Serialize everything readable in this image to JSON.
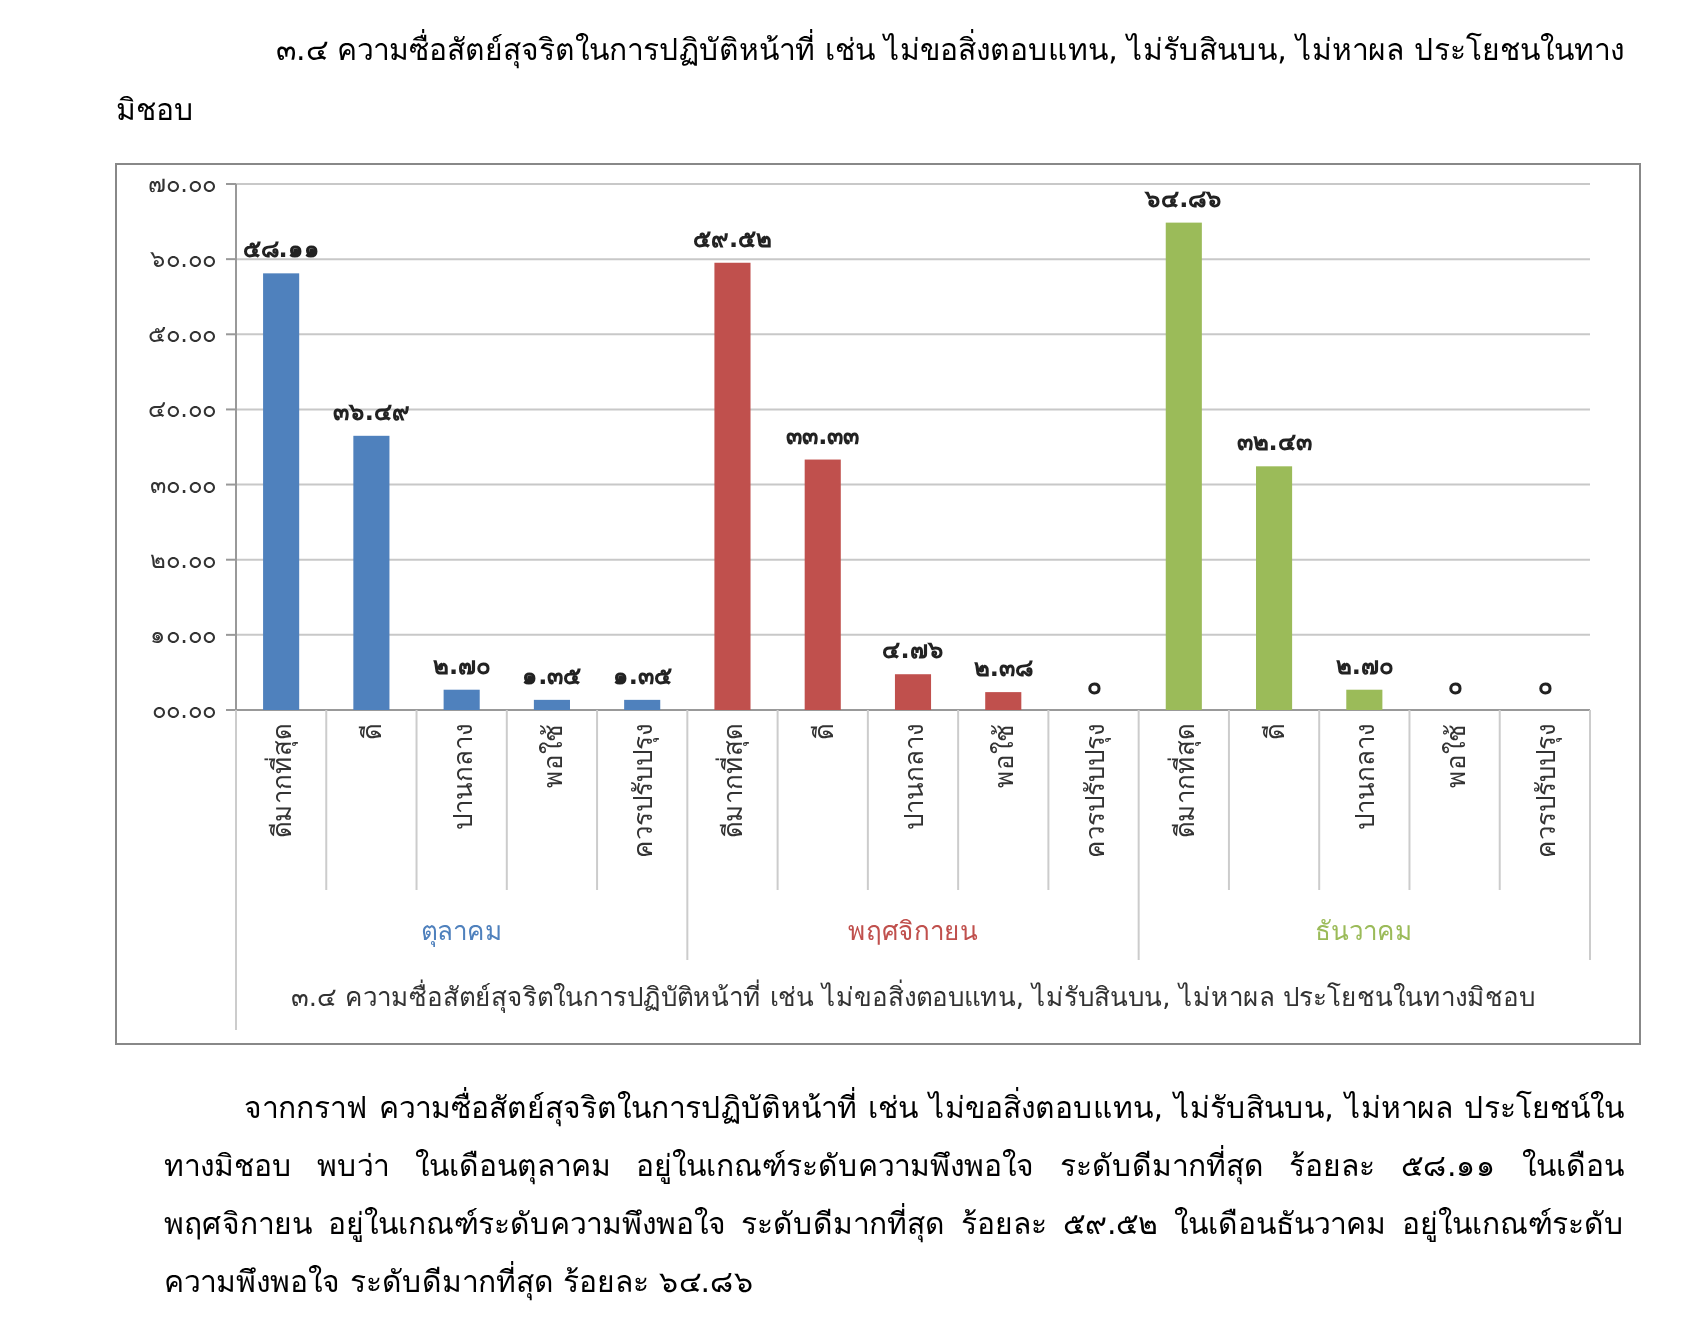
{
  "chart_data": {
    "type": "bar",
    "title": "๓.๔ ความซื่อสัตย์สุจริตในการปฏิบัติหน้าที่ เช่น ไม่ขอสิ่งตอบแทน, ไม่รับสินบน, ไม่หาผล ประโยชนในทางมิชอบ",
    "xlabel": "๓.๔ ความซื่อสัตย์สุจริตในการปฏิบัติหน้าที่ เช่น ไม่ขอสิ่งตอบแทน, ไม่รับสินบน, ไม่หาผล ประโยชนในทางมิชอบ",
    "categories": [
      "ดีมากที่สุด",
      "ดี",
      "ปานกลาง",
      "พอใช้",
      "ควรปรับปรุง",
      "ดีมากที่สุด",
      "ดี",
      "ปานกลาง",
      "พอใช้",
      "ควรปรับปรุง",
      "ดีมากที่สุด",
      "ดี",
      "ปานกลาง",
      "พอใช้",
      "ควรปรับปรุง"
    ],
    "series": [
      {
        "name": "ตุลาคม",
        "color": "#4f81bd",
        "values": [
          58.11,
          36.49,
          2.7,
          1.35,
          1.35,
          null,
          null,
          null,
          null,
          null,
          null,
          null,
          null,
          null,
          null
        ],
        "value_labels": [
          "๕๘.๑๑",
          "๓๖.๔๙",
          "๒.๗๐",
          "๑.๓๕",
          "๑.๓๕",
          null,
          null,
          null,
          null,
          null,
          null,
          null,
          null,
          null,
          null
        ]
      },
      {
        "name": "พฤศจิกายน",
        "color": "#c0504d",
        "values": [
          null,
          null,
          null,
          null,
          null,
          59.52,
          33.33,
          4.76,
          2.38,
          0,
          null,
          null,
          null,
          null,
          null
        ],
        "value_labels": [
          null,
          null,
          null,
          null,
          null,
          "๕๙.๕๒",
          "๓๓.๓๓",
          "๔.๗๖",
          "๒.๓๘",
          "๐",
          null,
          null,
          null,
          null,
          null
        ]
      },
      {
        "name": "ธันวาคม",
        "color": "#9bbb59",
        "values": [
          null,
          null,
          null,
          null,
          null,
          null,
          null,
          null,
          null,
          null,
          64.86,
          32.43,
          2.7,
          0,
          0
        ],
        "value_labels": [
          null,
          null,
          null,
          null,
          null,
          null,
          null,
          null,
          null,
          null,
          "๖๔.๘๖",
          "๓๒.๔๓",
          "๒.๗๐",
          "๐",
          "๐"
        ]
      }
    ],
    "ylim": [
      0,
      70
    ],
    "yticks": [
      {
        "value": 0,
        "label": "๐๐.๐๐"
      },
      {
        "value": 10,
        "label": "๑๐.๐๐"
      },
      {
        "value": 20,
        "label": "๒๐.๐๐"
      },
      {
        "value": 30,
        "label": "๓๐.๐๐"
      },
      {
        "value": 40,
        "label": "๔๐.๐๐"
      },
      {
        "value": 50,
        "label": "๕๐.๐๐"
      },
      {
        "value": 60,
        "label": "๖๐.๐๐"
      },
      {
        "value": 70,
        "label": "๗๐.๐๐"
      }
    ],
    "grid": "y",
    "legend": false,
    "annotations": [
      "จากกราฟ ความซื่อสัตย์สุจริตในการปฏิบัติหน้าที่ เช่น ไม่ขอสิ่งตอบแทน,  ไม่รับสินบน,  ไม่หาผล ประโยชน์ในทางมิชอบ พบว่า ในเดือนตุลาคม อยู่ในเกณฑ์ระดับความพึงพอใจ ระดับดีมากที่สุด ร้อยละ ๕๘.๑๑  ในเดือนพฤศจิกายน อยู่ในเกณฑ์ระดับความพึงพอใจ ระดับดีมากที่สุด ร้อยละ ๕๙.๕๒ ในเดือนธันวาคม อยู่ในเกณฑ์ระดับความพึงพอใจ ระดับดีมากที่สุด ร้อยละ ๖๔.๘๖"
    ]
  }
}
